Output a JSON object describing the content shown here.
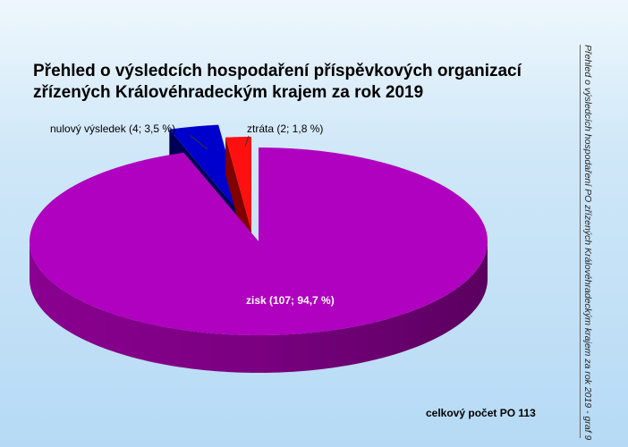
{
  "chart_data": {
    "type": "pie",
    "style": "3d-exploded",
    "title": "Přehled o výsledcích hospodaření příspěvkových organizací zřízených Královéhradeckým krajem za rok 2019",
    "side_caption": "Přehled o výsledcích hospodaření PO zřízených Královéhradeckým krajem za rok 2019 - graf 9",
    "total_label": "celkový počet PO 113",
    "slices": [
      {
        "name": "zisk",
        "count": 107,
        "percent": 94.7,
        "label": "zisk (107; 94,7 %)",
        "color": "#b000c0",
        "side_color": "#5a005f"
      },
      {
        "name": "nulový výsledek",
        "count": 4,
        "percent": 3.5,
        "label": "nulový výsledek (4; 3,5 %)",
        "color": "#0000cc",
        "side_color": "#000055"
      },
      {
        "name": "ztráta",
        "count": 2,
        "percent": 1.8,
        "label": "ztráta (2; 1,8 %)",
        "color": "#ff1010",
        "side_color": "#800000"
      }
    ]
  }
}
